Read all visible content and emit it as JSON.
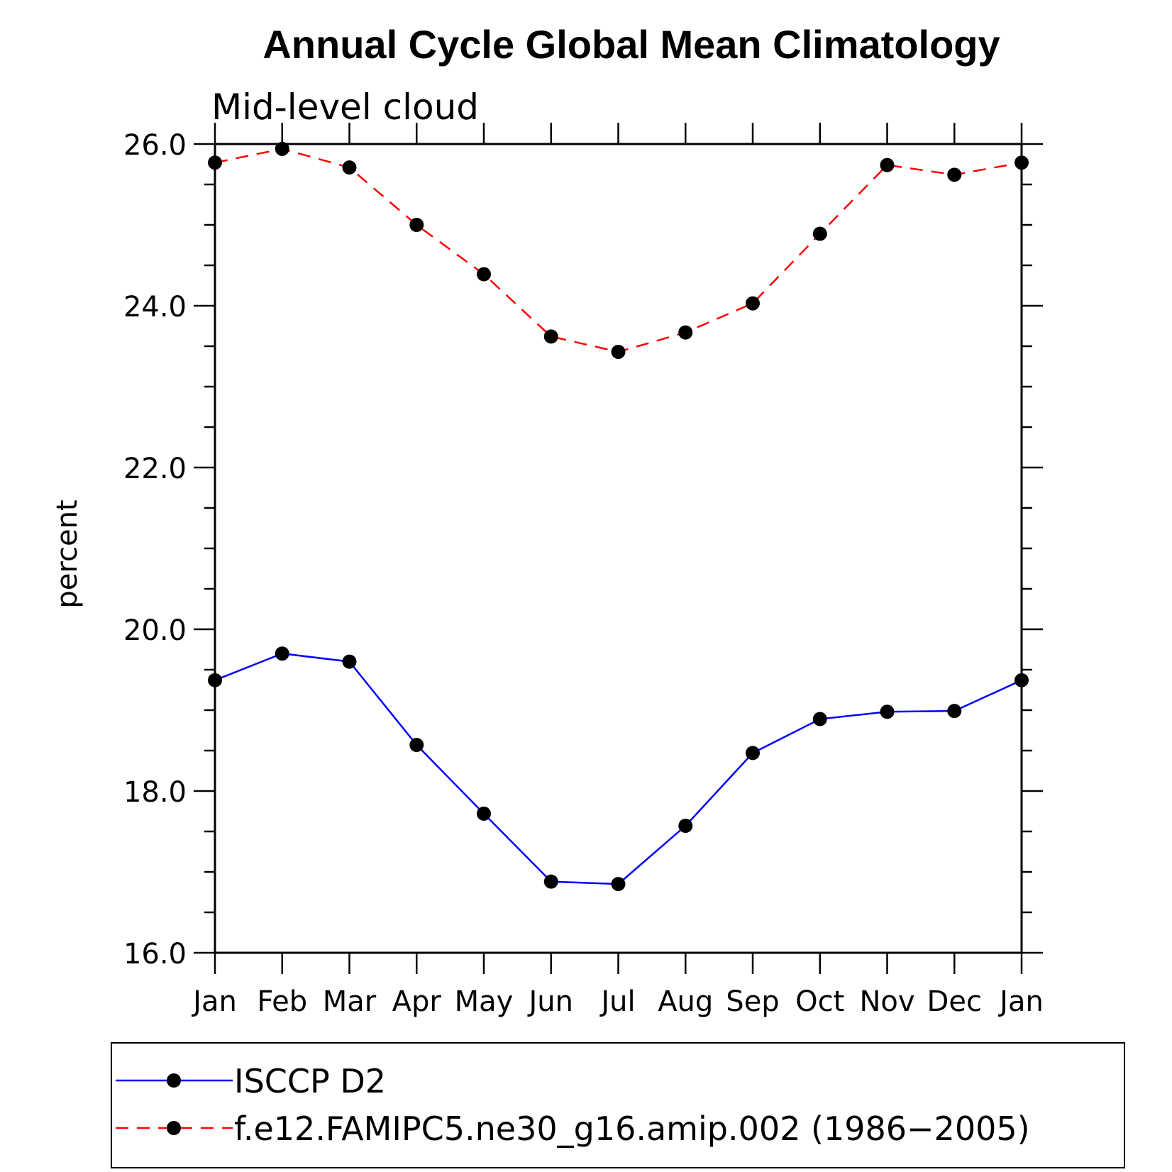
{
  "chart_data": {
    "type": "line",
    "title": "Annual Cycle Global Mean Climatology",
    "subtitle": "Mid-level cloud",
    "ylabel": "percent",
    "xlabel": "",
    "ylim": [
      16.0,
      26.0
    ],
    "yticks": [
      "16.0",
      "18.0",
      "20.0",
      "22.0",
      "24.0",
      "26.0"
    ],
    "ytick_values": [
      16,
      18,
      20,
      22,
      24,
      26
    ],
    "categories": [
      "Jan",
      "Feb",
      "Mar",
      "Apr",
      "May",
      "Jun",
      "Jul",
      "Aug",
      "Sep",
      "Oct",
      "Nov",
      "Dec",
      "Jan"
    ],
    "grid": false,
    "legend_position": "bottom",
    "series": [
      {
        "name": "ISCCP D2",
        "color": "#0000ff",
        "style": "solid",
        "marker": "filled-circle",
        "values": [
          19.37,
          19.7,
          19.6,
          18.57,
          17.72,
          16.88,
          16.85,
          17.57,
          18.47,
          18.89,
          18.98,
          18.99,
          19.37
        ]
      },
      {
        "name": "f.e12.FAMIPC5.ne30_g16.amip.002 (1986−2005)",
        "color": "#ff0000",
        "style": "dashed",
        "marker": "filled-circle",
        "values": [
          25.77,
          25.94,
          25.71,
          25.0,
          24.39,
          23.62,
          23.43,
          23.67,
          24.03,
          24.89,
          25.74,
          25.62,
          25.77
        ]
      }
    ]
  }
}
